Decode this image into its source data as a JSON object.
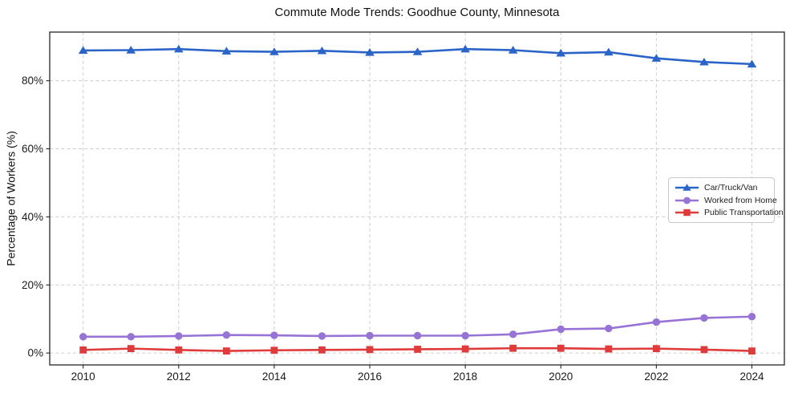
{
  "chart_data": {
    "type": "line",
    "title": "Commute Mode Trends: Goodhue County, Minnesota",
    "ylabel": "Percentage of Workers (%)",
    "xlabel": "",
    "x": [
      2010,
      2011,
      2012,
      2013,
      2014,
      2015,
      2016,
      2017,
      2018,
      2019,
      2020,
      2021,
      2022,
      2023,
      2024
    ],
    "x_tick_values": [
      2010,
      2012,
      2014,
      2016,
      2018,
      2020,
      2022,
      2024
    ],
    "x_tick_labels": [
      "2010",
      "2012",
      "2014",
      "2016",
      "2018",
      "2020",
      "2022",
      "2024"
    ],
    "y_tick_values": [
      0,
      20,
      40,
      60,
      80
    ],
    "y_tick_labels": [
      "0%",
      "20%",
      "40%",
      "60%",
      "80%"
    ],
    "xlim": [
      2009.3,
      2024.68
    ],
    "ylim": [
      -3.5,
      94.3
    ],
    "grid": "dashed",
    "legend_position": "center-right",
    "series": [
      {
        "name": "Car/Truck/Van",
        "color": "#2a64c8",
        "marker": "triangle",
        "values": [
          88.9,
          89.0,
          89.3,
          88.7,
          88.5,
          88.8,
          88.3,
          88.5,
          89.3,
          89.0,
          88.1,
          88.4,
          86.6,
          85.5,
          84.9
        ]
      },
      {
        "name": "Worked from Home",
        "color": "#9873d6",
        "marker": "circle",
        "values": [
          4.8,
          4.8,
          5.0,
          5.3,
          5.2,
          5.0,
          5.1,
          5.1,
          5.1,
          5.5,
          7.0,
          7.2,
          9.1,
          10.3,
          10.7
        ]
      },
      {
        "name": "Public Transportation",
        "color": "#df3b3b",
        "marker": "square",
        "values": [
          0.9,
          1.3,
          0.9,
          0.6,
          0.8,
          0.9,
          1.0,
          1.1,
          1.2,
          1.4,
          1.4,
          1.2,
          1.3,
          1.0,
          0.6
        ]
      }
    ],
    "style": {
      "grid_color": "#cdcdcd",
      "spine_color": "#262626",
      "tick_text_color": "#1a1a1a",
      "line_width": 2.6
    }
  }
}
